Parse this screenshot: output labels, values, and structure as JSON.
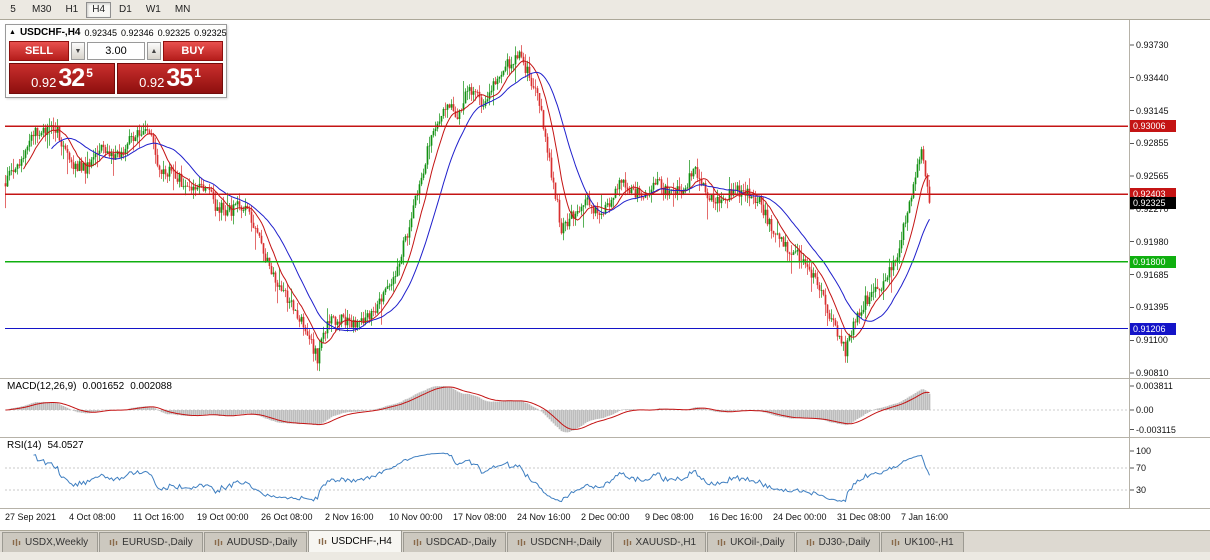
{
  "toolbar": {
    "timeframes": [
      {
        "label": "5",
        "active": false
      },
      {
        "label": "M30",
        "active": false
      },
      {
        "label": "H1",
        "active": false
      },
      {
        "label": "H4",
        "active": true
      },
      {
        "label": "D1",
        "active": false
      },
      {
        "label": "W1",
        "active": false
      },
      {
        "label": "MN",
        "active": false
      }
    ]
  },
  "quote_panel": {
    "collapse_icon": "▲",
    "symbol": "USDCHF-,H4",
    "open": "0.92345",
    "high": "0.92346",
    "low": "0.92325",
    "close": "0.92325"
  },
  "trade_panel": {
    "sell_label": "SELL",
    "buy_label": "BUY",
    "volume": "3.00",
    "dec_icon": "▼",
    "inc_icon": "▲",
    "sell_price": {
      "prefix": "0.92",
      "big": "32",
      "sup": "5"
    },
    "buy_price": {
      "prefix": "0.92",
      "big": "35",
      "sup": "1"
    }
  },
  "price_axis": {
    "ticks": [
      "0.93730",
      "0.93440",
      "0.93145",
      "0.92855",
      "0.92565",
      "0.92270",
      "0.91980",
      "0.91685",
      "0.91395",
      "0.91100",
      "0.90810"
    ]
  },
  "hlines": [
    {
      "price": 0.93006,
      "label": "0.93006",
      "color": "#c41414"
    },
    {
      "price": 0.92403,
      "label": "0.92403",
      "color": "#c41414"
    },
    {
      "price": 0.918,
      "label": "0.91800",
      "color": "#0faf0f"
    },
    {
      "price": 0.91206,
      "label": "0.91206",
      "color": "#1414c8"
    }
  ],
  "current_price": {
    "value": 0.92325,
    "label": "0.92325",
    "bg": "#000000"
  },
  "macd": {
    "title": "MACD(12,26,9)",
    "value_main": "0.001652",
    "value_signal": "0.002088",
    "axis": [
      "0.003811",
      "0.00",
      "-0.003115"
    ],
    "hist_color": "#bdbdbd",
    "signal_color": "#c41414"
  },
  "rsi": {
    "title": "RSI(14)",
    "value": "54.0527",
    "axis": [
      100,
      70,
      30
    ],
    "levels": [
      70,
      30
    ],
    "line_color": "#3f7fc1"
  },
  "time_axis": {
    "labels": [
      "27 Sep 2021",
      "4 Oct 08:00",
      "11 Oct 16:00",
      "19 Oct 00:00",
      "26 Oct 08:00",
      "2 Nov 16:00",
      "10 Nov 00:00",
      "17 Nov 08:00",
      "24 Nov 16:00",
      "2 Dec 00:00",
      "9 Dec 08:00",
      "16 Dec 16:00",
      "24 Dec 00:00",
      "31 Dec 08:00",
      "7 Jan 16:00"
    ]
  },
  "tabs": [
    {
      "label": "USDX,Weekly",
      "active": false
    },
    {
      "label": "EURUSD-,Daily",
      "active": false
    },
    {
      "label": "AUDUSD-,Daily",
      "active": false
    },
    {
      "label": "USDCHF-,H4",
      "active": true
    },
    {
      "label": "USDCAD-,Daily",
      "active": false
    },
    {
      "label": "USDCNH-,Daily",
      "active": false
    },
    {
      "label": "XAUUSD-,H1",
      "active": false
    },
    {
      "label": "UKOil-,Daily",
      "active": false
    },
    {
      "label": "DJ30-,Daily",
      "active": false
    },
    {
      "label": "UK100-,H1",
      "active": false
    }
  ],
  "chart_data": {
    "type": "candlestick",
    "symbol": "USDCHF",
    "timeframe": "H4",
    "bars": 463,
    "y_range": [
      0.9081,
      0.9373
    ],
    "last_close": 0.92325,
    "up_color": "#129112",
    "down_color": "#d93030",
    "ma_fast": 10,
    "ma_slow": 24,
    "ma_fast_color": "#c41414",
    "ma_slow_color": "#2020cc",
    "macd_params": [
      12,
      26,
      9
    ],
    "rsi_period": 14,
    "price_path": [
      [
        0,
        0.925
      ],
      [
        7,
        0.927
      ],
      [
        15,
        0.9295
      ],
      [
        25,
        0.93
      ],
      [
        32,
        0.927
      ],
      [
        40,
        0.9262
      ],
      [
        47,
        0.928
      ],
      [
        55,
        0.9272
      ],
      [
        62,
        0.9288
      ],
      [
        71,
        0.9302
      ],
      [
        77,
        0.9262
      ],
      [
        85,
        0.9258
      ],
      [
        92,
        0.9242
      ],
      [
        100,
        0.9248
      ],
      [
        105,
        0.923
      ],
      [
        112,
        0.9225
      ],
      [
        120,
        0.9232
      ],
      [
        127,
        0.92
      ],
      [
        135,
        0.916
      ],
      [
        142,
        0.9145
      ],
      [
        150,
        0.912
      ],
      [
        156,
        0.9095
      ],
      [
        162,
        0.913
      ],
      [
        170,
        0.9128
      ],
      [
        177,
        0.9125
      ],
      [
        185,
        0.914
      ],
      [
        192,
        0.9155
      ],
      [
        200,
        0.92
      ],
      [
        206,
        0.924
      ],
      [
        213,
        0.9295
      ],
      [
        220,
        0.932
      ],
      [
        226,
        0.931
      ],
      [
        232,
        0.9335
      ],
      [
        239,
        0.932
      ],
      [
        245,
        0.934
      ],
      [
        251,
        0.9355
      ],
      [
        256,
        0.9365
      ],
      [
        261,
        0.935
      ],
      [
        267,
        0.932
      ],
      [
        273,
        0.926
      ],
      [
        278,
        0.921
      ],
      [
        285,
        0.9225
      ],
      [
        291,
        0.9235
      ],
      [
        297,
        0.922
      ],
      [
        303,
        0.9232
      ],
      [
        307,
        0.9255
      ],
      [
        313,
        0.924
      ],
      [
        320,
        0.9242
      ],
      [
        326,
        0.925
      ],
      [
        332,
        0.924
      ],
      [
        338,
        0.9245
      ],
      [
        345,
        0.926
      ],
      [
        351,
        0.924
      ],
      [
        357,
        0.9235
      ],
      [
        365,
        0.9245
      ],
      [
        371,
        0.924
      ],
      [
        377,
        0.9235
      ],
      [
        383,
        0.921
      ],
      [
        390,
        0.9195
      ],
      [
        396,
        0.9185
      ],
      [
        402,
        0.9175
      ],
      [
        408,
        0.915
      ],
      [
        415,
        0.912
      ],
      [
        420,
        0.91
      ],
      [
        426,
        0.9135
      ],
      [
        432,
        0.915
      ],
      [
        438,
        0.916
      ],
      [
        445,
        0.918
      ],
      [
        450,
        0.922
      ],
      [
        455,
        0.9255
      ],
      [
        458,
        0.928
      ],
      [
        462,
        0.92325
      ]
    ]
  }
}
